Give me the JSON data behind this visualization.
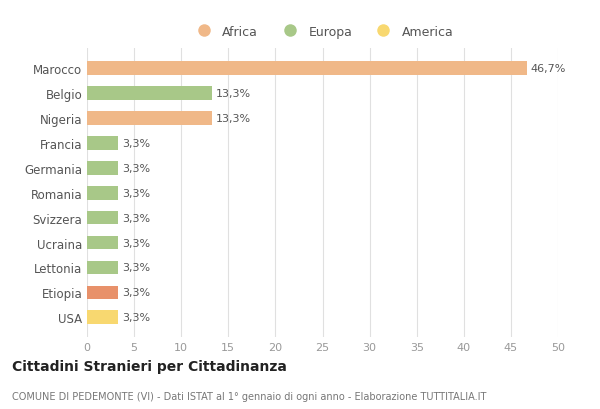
{
  "categories": [
    "Marocco",
    "Belgio",
    "Nigeria",
    "Francia",
    "Germania",
    "Romania",
    "Svizzera",
    "Ucraina",
    "Lettonia",
    "Etiopia",
    "USA"
  ],
  "values": [
    46.7,
    13.3,
    13.3,
    3.3,
    3.3,
    3.3,
    3.3,
    3.3,
    3.3,
    3.3,
    3.3
  ],
  "colors": [
    "#f0b888",
    "#a8c888",
    "#f0b888",
    "#a8c888",
    "#a8c888",
    "#a8c888",
    "#a8c888",
    "#a8c888",
    "#a8c888",
    "#e8916a",
    "#f8d870"
  ],
  "labels": [
    "46,7%",
    "13,3%",
    "13,3%",
    "3,3%",
    "3,3%",
    "3,3%",
    "3,3%",
    "3,3%",
    "3,3%",
    "3,3%",
    "3,3%"
  ],
  "legend_labels": [
    "Africa",
    "Europa",
    "America"
  ],
  "legend_colors": [
    "#f0b888",
    "#a8c888",
    "#f8d870"
  ],
  "title": "Cittadini Stranieri per Cittadinanza",
  "subtitle": "COMUNE DI PEDEMONTE (VI) - Dati ISTAT al 1° gennaio di ogni anno - Elaborazione TUTTITALIA.IT",
  "xlim": [
    0,
    50
  ],
  "xticks": [
    0,
    5,
    10,
    15,
    20,
    25,
    30,
    35,
    40,
    45,
    50
  ],
  "background_color": "#ffffff",
  "grid_color": "#e0e0e0"
}
